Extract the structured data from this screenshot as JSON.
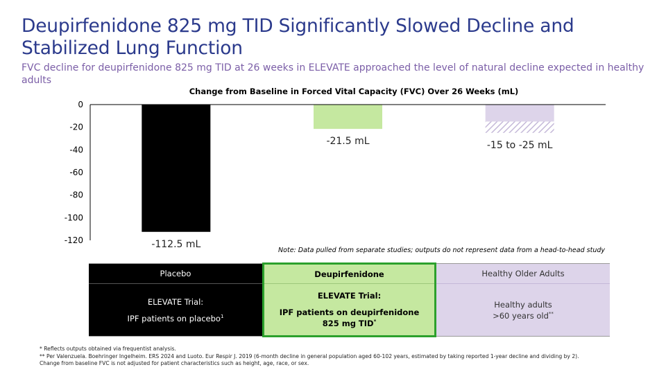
{
  "slide": {
    "title": "Deupirfenidone 825 mg TID Significantly Slowed Decline and Stabilized Lung Function",
    "subtitle": "FVC decline for deupirfenidone 825 mg TID at 26 weeks in ELEVATE approached the level of natural decline expected in healthy adults",
    "note": "Note: Data pulled from separate studies; outputs do not represent data from a head-to-head study"
  },
  "chart_data": {
    "type": "bar",
    "title": "Change from Baseline in Forced Vital Capacity (FVC) Over 26 Weeks (mL)",
    "xlabel": "",
    "ylabel": "",
    "ylim": [
      -120,
      0
    ],
    "yticks": [
      0,
      -20,
      -40,
      -60,
      -80,
      -100,
      -120
    ],
    "grid": false,
    "categories": [
      "Placebo",
      "Deupirfenidone",
      "Healthy Older Adults"
    ],
    "values": [
      -112.5,
      -21.5,
      -25
    ],
    "range": [
      null,
      null,
      [
        -15,
        -25
      ]
    ],
    "data_labels": [
      "-112.5 mL",
      "-21.5 mL",
      "-15 to -25 mL"
    ],
    "colors": [
      "#000000",
      "#c5e8a0",
      "#ddd4ea"
    ],
    "hatch_color": "#c4b8d8"
  },
  "table": {
    "columns": [
      {
        "header": "Placebo",
        "line1": "ELEVATE Trial:",
        "line2": "IPF patients on placebo",
        "line2_sup": "1",
        "line3": "",
        "line3_sup": ""
      },
      {
        "header": "Deupirfenidone",
        "line1": "ELEVATE Trial:",
        "line2": "IPF patients on deupirfenidone",
        "line2_sup": "",
        "line3": "825 mg TID",
        "line3_sup": "*"
      },
      {
        "header": "Healthy Older Adults",
        "line1": "Healthy adults",
        "line2": ">60 years old",
        "line2_sup": "**",
        "line3": "",
        "line3_sup": ""
      }
    ]
  },
  "footnotes": [
    "* Reflects outputs obtained via frequentist analysis.",
    "** Per Valenzuela. Boehringer Ingelheim. ERS 2024 and Luoto. Eur Respir J. 2019 (6-month decline in general population aged 60-102 years, estimated by taking reported 1-year decline and dividing by 2). Change from baseline FVC is not adjusted for patient characteristics such as height, age, race, or sex."
  ]
}
